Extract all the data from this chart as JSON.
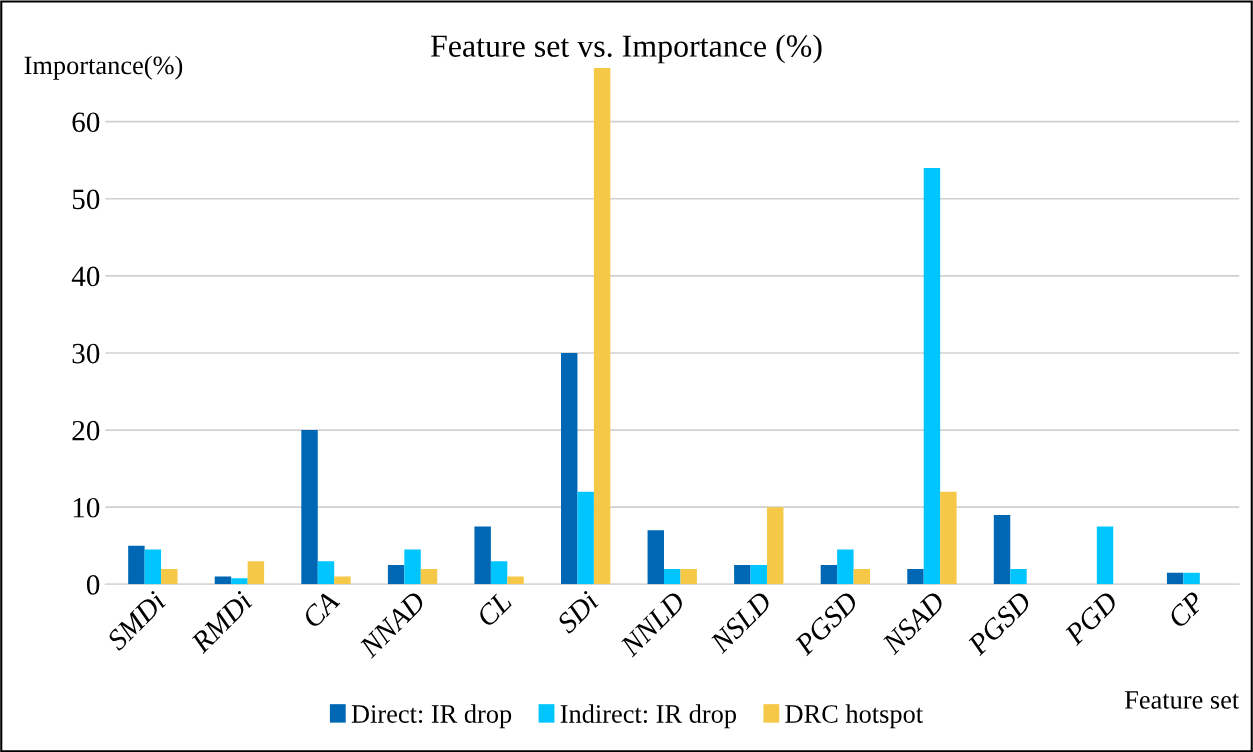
{
  "chart_data": {
    "type": "bar",
    "title": "Feature set vs. Importance (%)",
    "xlabel": "Feature set",
    "ylabel": "Importance(%)",
    "categories": [
      "SMDi",
      "RMDi",
      "CA",
      "NNAD",
      "CL",
      "SDi",
      "NNLD",
      "NSLD",
      "PGSD",
      "NSAD",
      "PGSD",
      "PGD",
      "CP"
    ],
    "series": [
      {
        "name": "Direct: IR drop",
        "color": "#0067b5",
        "values": [
          5,
          1,
          20,
          2.5,
          7.5,
          30,
          7,
          2.5,
          2.5,
          2,
          9,
          null,
          1.5
        ]
      },
      {
        "name": "Indirect: IR drop",
        "color": "#00c5ff",
        "values": [
          4.5,
          0.8,
          3,
          4.5,
          3,
          12,
          2,
          2.5,
          4.5,
          54,
          2,
          7.5,
          1.5
        ]
      },
      {
        "name": "DRC hotspot",
        "color": "#f5c847",
        "values": [
          2,
          3,
          1,
          2,
          1,
          67,
          2,
          10,
          2,
          12,
          null,
          null,
          null
        ]
      }
    ],
    "ylim": [
      0,
      67
    ],
    "yticks": [
      0,
      10,
      20,
      30,
      40,
      50,
      60
    ],
    "grid": "y",
    "legend": "bottom"
  }
}
